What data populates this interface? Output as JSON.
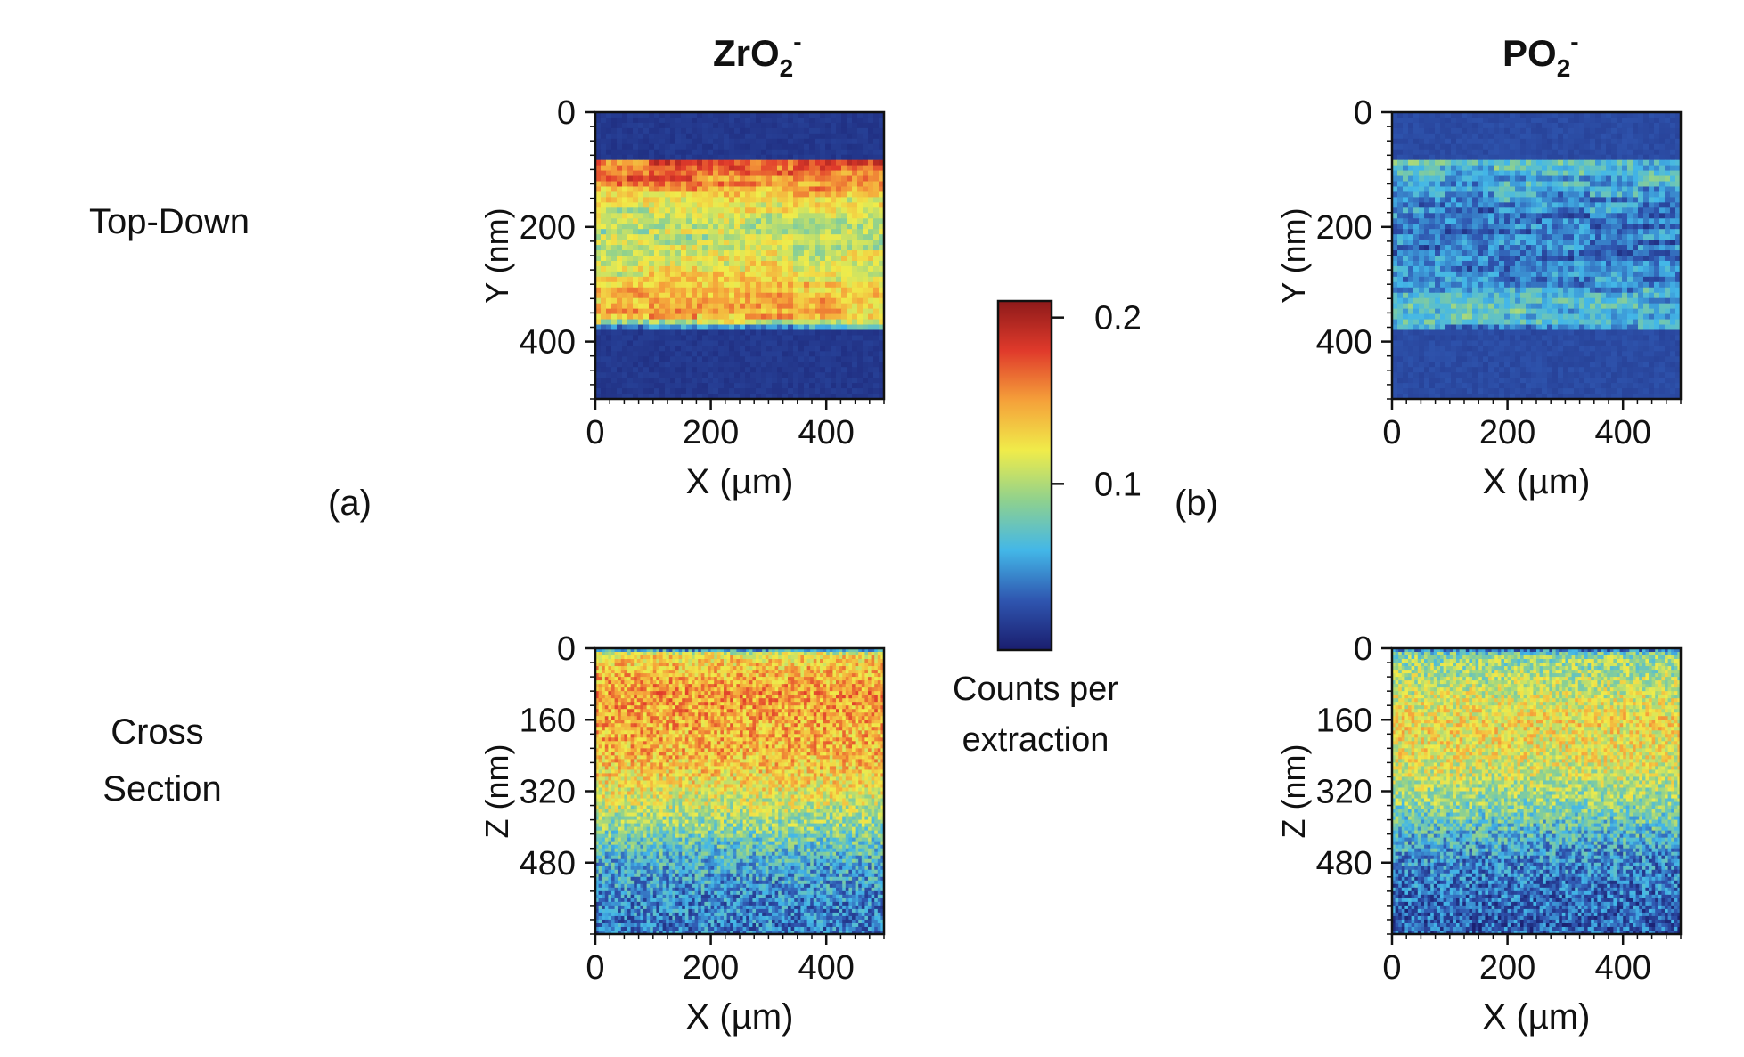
{
  "columns": [
    {
      "label": "ZrO",
      "sub": "2",
      "sup": "-"
    },
    {
      "label": "PO",
      "sub": "2",
      "sup": "-"
    }
  ],
  "rows": [
    "Top-Down",
    "Cross Section"
  ],
  "panel_labels": [
    "(a)",
    "(b)"
  ],
  "colorbar": {
    "label_line1": "Counts per",
    "label_line2": "extraction",
    "ticks": [
      {
        "value": 0.2,
        "label": "0.2"
      },
      {
        "value": 0.1,
        "label": "0.1"
      }
    ],
    "min": 0.0,
    "max": 0.21,
    "colormap": "jet",
    "colors": [
      "#1a1e6e",
      "#2f56b0",
      "#43b7e8",
      "#8fd18e",
      "#f0ec4a",
      "#f5a13a",
      "#e03a2b",
      "#8e1a1a"
    ]
  },
  "chart_data": [
    {
      "type": "heatmap",
      "species": "ZrO2-",
      "view": "Top-Down",
      "xlabel": "X (µm)",
      "ylabel": "Y (nm)",
      "xlim": [
        0,
        500
      ],
      "ylim": [
        0,
        500
      ],
      "y_inverted": true,
      "xticks": [
        0,
        200,
        400
      ],
      "yticks": [
        0,
        200,
        400
      ],
      "band": {
        "y_start": 85,
        "y_end": 375
      },
      "value_outside": 0.01,
      "profile_y": [
        90,
        120,
        160,
        200,
        240,
        280,
        320,
        360,
        375
      ],
      "profile_values": [
        0.17,
        0.16,
        0.12,
        0.1,
        0.11,
        0.12,
        0.14,
        0.14,
        0.05
      ]
    },
    {
      "type": "heatmap",
      "species": "PO2-",
      "view": "Top-Down",
      "xlabel": "X (µm)",
      "ylabel": "Y (nm)",
      "xlim": [
        0,
        500
      ],
      "ylim": [
        0,
        500
      ],
      "y_inverted": true,
      "xticks": [
        0,
        200,
        400
      ],
      "yticks": [
        0,
        200,
        400
      ],
      "band": {
        "y_start": 85,
        "y_end": 375
      },
      "value_outside": 0.02,
      "profile_y": [
        90,
        120,
        160,
        200,
        240,
        280,
        320,
        360,
        375
      ],
      "profile_values": [
        0.07,
        0.06,
        0.045,
        0.04,
        0.04,
        0.045,
        0.06,
        0.07,
        0.05
      ]
    },
    {
      "type": "heatmap",
      "species": "ZrO2-",
      "view": "Cross Section",
      "xlabel": "X (µm)",
      "ylabel": "Z (nm)",
      "xlim": [
        0,
        500
      ],
      "ylim": [
        0,
        640
      ],
      "y_inverted": true,
      "xticks": [
        0,
        200,
        400
      ],
      "yticks": [
        0,
        160,
        320,
        480
      ],
      "profile_z": [
        0,
        15,
        100,
        160,
        240,
        320,
        400,
        480,
        560,
        640
      ],
      "profile_values": [
        0.03,
        0.13,
        0.15,
        0.145,
        0.14,
        0.12,
        0.09,
        0.06,
        0.045,
        0.04
      ]
    },
    {
      "type": "heatmap",
      "species": "PO2-",
      "view": "Cross Section",
      "xlabel": "X (µm)",
      "ylabel": "Z (nm)",
      "xlim": [
        0,
        500
      ],
      "ylim": [
        0,
        640
      ],
      "y_inverted": true,
      "xticks": [
        0,
        200,
        400
      ],
      "yticks": [
        0,
        160,
        320,
        480
      ],
      "profile_z": [
        0,
        15,
        100,
        160,
        240,
        320,
        400,
        480,
        560,
        640
      ],
      "profile_values": [
        0.03,
        0.09,
        0.11,
        0.125,
        0.12,
        0.1,
        0.07,
        0.045,
        0.035,
        0.03
      ]
    }
  ]
}
